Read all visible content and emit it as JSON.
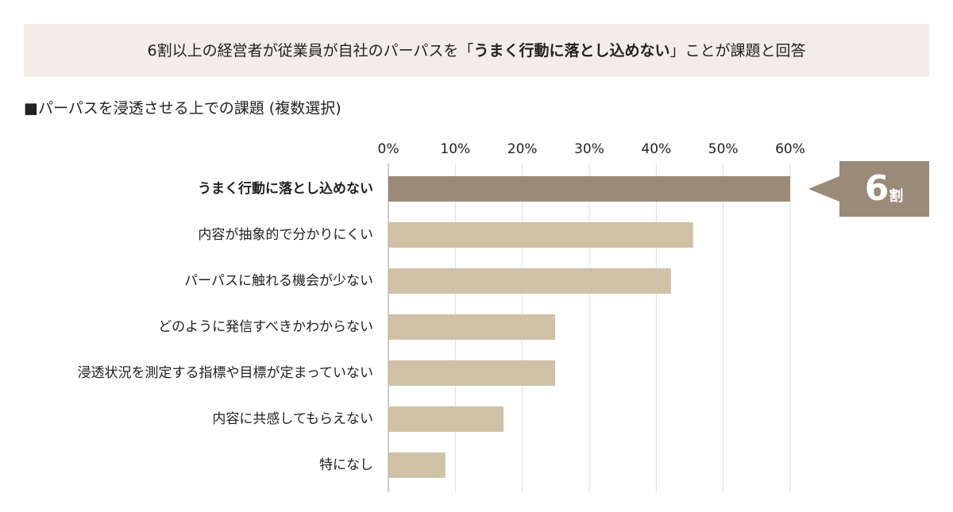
{
  "chart_data": {
    "type": "bar",
    "orientation": "horizontal",
    "title": [
      "6割以上の経営者が従業員が自社のパーパスを「",
      "うまく行動に落とし込めない",
      "」ことが課題と回答"
    ],
    "subtitle": "■パーパスを浸透させる上での課題 (複数選択)",
    "categories": [
      "うまく行動に落とし込めない",
      "内容が抽象的で分かりにくい",
      "パーパスに触れる機会が少ない",
      "どのように発信すべきかわからない",
      "浸透状況を測定する指標や目標が定まっていない",
      "内容に共感してもらえない",
      "特になし"
    ],
    "values": [
      60,
      45.5,
      42.2,
      24.9,
      24.9,
      17.2,
      8.5
    ],
    "colors": [
      "#9a8a78",
      "#cfc1a6",
      "#cfc1a6",
      "#cfc1a6",
      "#cfc1a6",
      "#cfc1a6",
      "#cfc1a6"
    ],
    "xlim": [
      0,
      60
    ],
    "xticks": [
      {
        "value": 0,
        "label": "0%"
      },
      {
        "value": 10,
        "label": "10%"
      },
      {
        "value": 20,
        "label": "20%"
      },
      {
        "value": 30,
        "label": "30%"
      },
      {
        "value": 40,
        "label": "40%"
      },
      {
        "value": 50,
        "label": "50%"
      },
      {
        "value": 60,
        "label": "60%"
      }
    ],
    "grid": true,
    "annotation": {
      "number": "6",
      "unit": "割"
    }
  }
}
